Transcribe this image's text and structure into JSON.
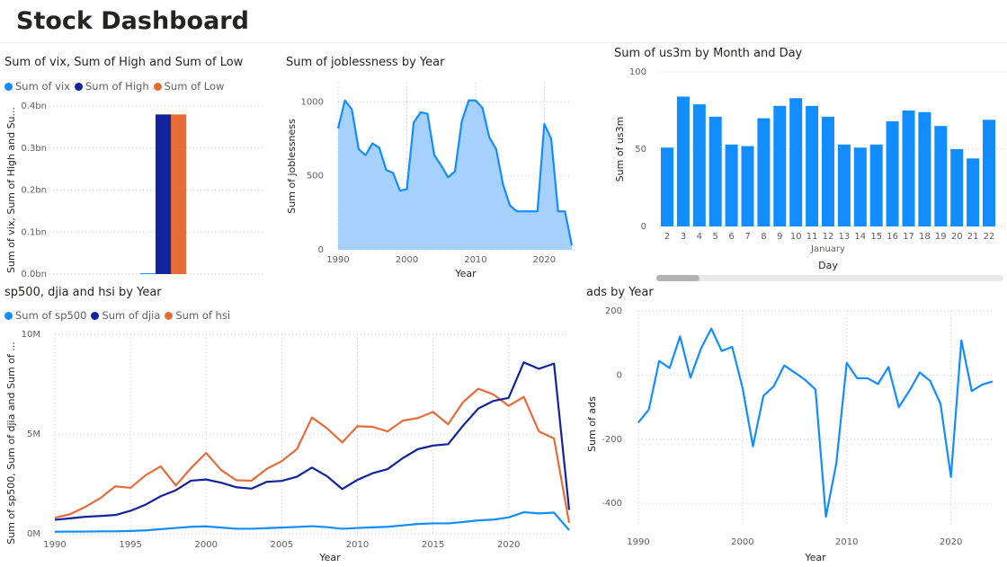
{
  "page": {
    "title": "Stock Dashboard"
  },
  "colors": {
    "primary": "#118DFF",
    "navy": "#12239E",
    "orange": "#E66C37",
    "area_fill": "#A6D1FF"
  },
  "charts": {
    "vix": {
      "title": "Sum of vix, Sum of High and Sum of Low",
      "legend": [
        "Sum of vix",
        "Sum of High",
        "Sum of Low"
      ],
      "ylabel": "Sum of vix, Sum of High and Su...",
      "yticks": [
        "0.4bn",
        "0.3bn",
        "0.2bn",
        "0.1bn",
        "0.0bn"
      ]
    },
    "jobless": {
      "title": "Sum of joblessness by Year",
      "ylabel": "Sum of joblessness",
      "xlabel": "Year",
      "yticks": [
        "1000",
        "500",
        "0"
      ],
      "xticks": [
        "1990",
        "2000",
        "2010",
        "2020"
      ]
    },
    "us3m": {
      "title": "Sum of us3m by Month and Day",
      "ylabel": "Sum of us3m",
      "xlabel": "Day",
      "month_label": "January",
      "yticks": [
        "100",
        "50",
        "0"
      ]
    },
    "indices": {
      "title": "sp500, djia and hsi by Year",
      "legend": [
        "Sum of sp500",
        "Sum of djia",
        "Sum of hsi"
      ],
      "ylabel": "Sum of sp500, Sum of djia and Sum of ...",
      "xlabel": "Year",
      "yticks": [
        "10M",
        "5M",
        "0M"
      ],
      "xticks": [
        "1990",
        "1995",
        "2000",
        "2005",
        "2010",
        "2015",
        "2020"
      ]
    },
    "ads": {
      "title": "ads by Year",
      "ylabel": "Sum of ads",
      "xlabel": "Year",
      "yticks": [
        "200",
        "0",
        "-200",
        "-400"
      ],
      "xticks": [
        "1990",
        "2000",
        "2010",
        "2020"
      ]
    }
  },
  "chart_data": [
    {
      "id": "vix",
      "type": "bar",
      "title": "Sum of vix, Sum of High and Sum of Low",
      "categories": [
        ""
      ],
      "series": [
        {
          "name": "Sum of vix",
          "values": [
            0.002
          ]
        },
        {
          "name": "Sum of High",
          "values": [
            0.38
          ]
        },
        {
          "name": "Sum of Low",
          "values": [
            0.38
          ]
        }
      ],
      "ylim": [
        0,
        0.4
      ],
      "unit": "bn",
      "legend": "top-left",
      "grid": true
    },
    {
      "id": "jobless",
      "type": "area",
      "title": "Sum of joblessness by Year",
      "xlabel": "Year",
      "ylabel": "Sum of joblessness",
      "x": [
        1990,
        1991,
        1992,
        1993,
        1994,
        1995,
        1996,
        1997,
        1998,
        1999,
        2000,
        2001,
        2002,
        2003,
        2004,
        2005,
        2006,
        2007,
        2008,
        2009,
        2010,
        2011,
        2012,
        2013,
        2014,
        2015,
        2016,
        2017,
        2018,
        2019,
        2020,
        2021,
        2022,
        2023,
        2024
      ],
      "values": [
        820,
        1010,
        950,
        680,
        640,
        720,
        690,
        540,
        520,
        400,
        410,
        860,
        930,
        920,
        640,
        570,
        490,
        530,
        870,
        1010,
        1010,
        960,
        760,
        680,
        440,
        300,
        260,
        260,
        260,
        260,
        850,
        750,
        260,
        260,
        30
      ],
      "xlim": [
        1990,
        2024
      ],
      "ylim": [
        0,
        1130
      ],
      "grid": true
    },
    {
      "id": "us3m",
      "type": "bar",
      "title": "Sum of us3m by Month and Day",
      "xlabel": "Day",
      "ylabel": "Sum of us3m",
      "categories": [
        "2",
        "3",
        "4",
        "5",
        "6",
        "7",
        "8",
        "9",
        "10",
        "11",
        "12",
        "13",
        "14",
        "15",
        "16",
        "17",
        "18",
        "19",
        "20",
        "21",
        "22"
      ],
      "values": [
        51,
        84,
        79,
        71,
        53,
        52,
        70,
        78,
        83,
        78,
        71,
        53,
        51,
        53,
        68,
        75,
        74,
        65,
        50,
        44,
        69
      ],
      "ylim": [
        0,
        100
      ],
      "grid": true
    },
    {
      "id": "indices",
      "type": "line",
      "title": "sp500, djia and hsi by Year",
      "xlabel": "Year",
      "x": [
        1990,
        1991,
        1992,
        1993,
        1994,
        1995,
        1996,
        1997,
        1998,
        1999,
        2000,
        2001,
        2002,
        2003,
        2004,
        2005,
        2006,
        2007,
        2008,
        2009,
        2010,
        2011,
        2012,
        2013,
        2014,
        2015,
        2016,
        2017,
        2018,
        2019,
        2020,
        2021,
        2022,
        2023,
        2024
      ],
      "series": [
        {
          "name": "Sum of sp500",
          "values": [
            0.1,
            0.11,
            0.11,
            0.12,
            0.12,
            0.14,
            0.17,
            0.23,
            0.29,
            0.35,
            0.37,
            0.31,
            0.25,
            0.25,
            0.28,
            0.31,
            0.34,
            0.38,
            0.33,
            0.25,
            0.29,
            0.32,
            0.35,
            0.42,
            0.49,
            0.52,
            0.52,
            0.59,
            0.67,
            0.71,
            0.82,
            1.08,
            1.02,
            1.06,
            0.18
          ]
        },
        {
          "name": "Sum of djia",
          "values": [
            0.7,
            0.77,
            0.85,
            0.89,
            0.94,
            1.15,
            1.46,
            1.88,
            2.18,
            2.66,
            2.72,
            2.56,
            2.33,
            2.26,
            2.6,
            2.65,
            2.86,
            3.32,
            2.88,
            2.24,
            2.7,
            3.03,
            3.24,
            3.79,
            4.24,
            4.42,
            4.49,
            5.43,
            6.28,
            6.66,
            6.81,
            8.59,
            8.27,
            8.53,
            1.2
          ]
        },
        {
          "name": "Sum of hsi",
          "values": [
            0.8,
            0.98,
            1.34,
            1.78,
            2.38,
            2.3,
            2.93,
            3.38,
            2.42,
            3.29,
            4.05,
            3.19,
            2.68,
            2.66,
            3.25,
            3.64,
            4.24,
            5.83,
            5.28,
            4.58,
            5.39,
            5.36,
            5.13,
            5.67,
            5.8,
            6.11,
            5.49,
            6.61,
            7.27,
            6.98,
            6.41,
            6.86,
            5.13,
            4.78,
            0.55
          ]
        }
      ],
      "xlim": [
        1990,
        2024
      ],
      "ylim": [
        0,
        10
      ],
      "unit": "M",
      "legend": "top-left",
      "grid": true
    },
    {
      "id": "ads",
      "type": "line",
      "title": "ads by Year",
      "xlabel": "Year",
      "ylabel": "Sum of ads",
      "x": [
        1990,
        1991,
        1992,
        1993,
        1994,
        1995,
        1996,
        1997,
        1998,
        1999,
        2000,
        2001,
        2002,
        2003,
        2004,
        2005,
        2006,
        2007,
        2008,
        2009,
        2010,
        2011,
        2012,
        2013,
        2014,
        2015,
        2016,
        2017,
        2018,
        2019,
        2020,
        2021,
        2022,
        2023,
        2024
      ],
      "values": [
        -148,
        -108,
        44,
        22,
        120,
        -8,
        82,
        145,
        75,
        88,
        -40,
        -222,
        -65,
        -35,
        30,
        8,
        -15,
        -45,
        -442,
        -275,
        38,
        -10,
        -10,
        -28,
        25,
        -100,
        -50,
        8,
        -18,
        -90,
        -318,
        108,
        -50,
        -30,
        -20
      ],
      "xlim": [
        1990,
        2024
      ],
      "ylim": [
        -450,
        200
      ],
      "grid": true
    }
  ]
}
